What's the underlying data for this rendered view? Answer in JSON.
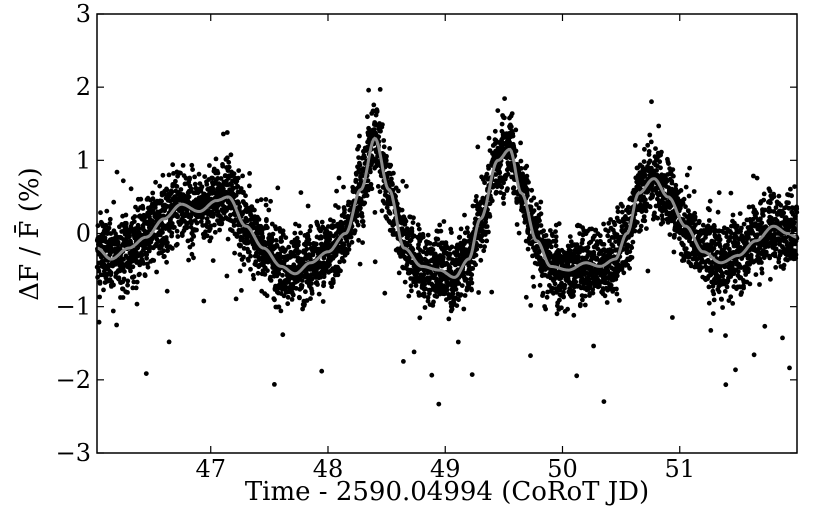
{
  "chart_data": {
    "type": "scatter",
    "title": "",
    "xlabel": "Time - 2590.04994 (CoRoT JD)",
    "ylabel": "ΔF / F̄ (%)",
    "xlim": [
      46.03,
      52.0
    ],
    "ylim": [
      -3,
      3
    ],
    "x_ticks": [
      47,
      48,
      49,
      50,
      51
    ],
    "x_tick_labels": [
      "47",
      "48",
      "49",
      "50",
      "51"
    ],
    "y_ticks": [
      -3,
      -2,
      -1,
      0,
      1,
      2,
      3
    ],
    "y_tick_labels": [
      "−3",
      "−2",
      "−1",
      "0",
      "1",
      "2",
      "3"
    ],
    "grid": false,
    "series": [
      {
        "kind": "scatter",
        "color": "#000000",
        "description_of_density": "dense cloud of observations around the smooth fit, scatter about 0.35 percent with outliers down to -2.4 and up to 2.1"
      },
      {
        "kind": "line",
        "color": "#8c8c8c",
        "x": [
          46.03,
          46.15,
          46.3,
          46.45,
          46.6,
          46.75,
          46.9,
          47.05,
          47.15,
          47.3,
          47.45,
          47.6,
          47.72,
          47.85,
          48.0,
          48.15,
          48.28,
          48.4,
          48.52,
          48.65,
          48.8,
          48.95,
          49.08,
          49.2,
          49.3,
          49.45,
          49.55,
          49.65,
          49.78,
          49.9,
          50.05,
          50.2,
          50.32,
          50.45,
          50.55,
          50.65,
          50.78,
          50.9,
          51.05,
          51.2,
          51.35,
          51.5,
          51.65,
          51.8,
          51.92,
          52.0
        ],
        "y": [
          -0.2,
          -0.35,
          -0.2,
          -0.05,
          0.2,
          0.4,
          0.3,
          0.45,
          0.5,
          0.1,
          -0.2,
          -0.45,
          -0.55,
          -0.4,
          -0.25,
          0.0,
          0.6,
          1.3,
          0.6,
          -0.2,
          -0.45,
          -0.5,
          -0.6,
          -0.35,
          0.2,
          1.0,
          1.15,
          0.55,
          -0.1,
          -0.45,
          -0.5,
          -0.4,
          -0.45,
          -0.35,
          0.0,
          0.55,
          0.75,
          0.5,
          0.1,
          -0.25,
          -0.4,
          -0.3,
          -0.1,
          0.1,
          0.0,
          -0.05
        ]
      }
    ]
  }
}
